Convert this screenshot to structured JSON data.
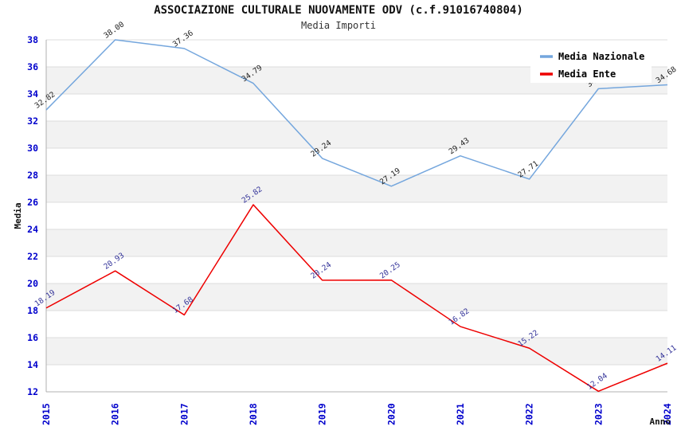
{
  "chart": {
    "title": "ASSOCIAZIONE CULTURALE NUOVAMENTE ODV (c.f.91016740804)",
    "subtitle": "Media Importi"
  },
  "chart_data": {
    "type": "line",
    "x": [
      "2015",
      "2016",
      "2017",
      "2018",
      "2019",
      "2020",
      "2021",
      "2022",
      "2023",
      "2024"
    ],
    "xlabel": "Anno",
    "ylabel": "Media",
    "ylim": [
      12,
      38
    ],
    "ytick_step": 2,
    "grid": "horizontal-bands-alternating",
    "legend_position": "top-right",
    "series": [
      {
        "name": "Media Nazionale",
        "color": "#74a6dd",
        "label_color": "#222222",
        "values": [
          32.82,
          38.0,
          37.36,
          34.79,
          29.24,
          27.19,
          29.43,
          27.71,
          34.39,
          34.68
        ],
        "label_hidden_behind_legend": [
          false,
          false,
          false,
          false,
          false,
          false,
          false,
          false,
          true,
          false
        ]
      },
      {
        "name": "Media Ente",
        "color": "#ee0000",
        "label_color": "#333399",
        "values": [
          18.19,
          20.93,
          17.68,
          25.82,
          20.24,
          20.25,
          16.82,
          15.22,
          12.04,
          14.11
        ],
        "label_hidden_behind_legend": [
          false,
          false,
          false,
          false,
          false,
          false,
          false,
          false,
          false,
          false
        ]
      }
    ],
    "colors": {
      "band_gray": "#f2f2f2",
      "gridline": "#dcdcdc",
      "axis_line": "#b0b0b0",
      "tick_label_blue": "#0000cc",
      "axis_title_black": "#111111",
      "legend_text": "#000000",
      "legend_background": "#ffffff"
    }
  }
}
